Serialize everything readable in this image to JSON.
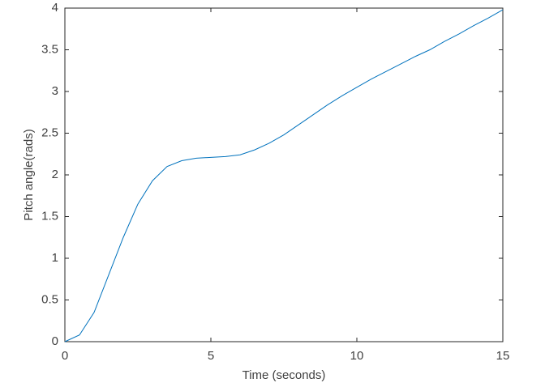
{
  "chart_data": {
    "type": "line",
    "x_label": "Time (seconds)",
    "y_label": "Pitch angle(rads)",
    "x": [
      0,
      0.5,
      1,
      1.5,
      2,
      2.5,
      3,
      3.5,
      4,
      4.5,
      5,
      5.5,
      6,
      6.5,
      7,
      7.5,
      8,
      8.5,
      9,
      9.5,
      10,
      10.5,
      11,
      11.5,
      12,
      12.5,
      13,
      13.5,
      14,
      14.5,
      15
    ],
    "series": [
      {
        "color": "#0072bd",
        "values": [
          0,
          0.08,
          0.35,
          0.8,
          1.25,
          1.65,
          1.93,
          2.1,
          2.17,
          2.2,
          2.21,
          2.22,
          2.24,
          2.3,
          2.38,
          2.48,
          2.6,
          2.72,
          2.84,
          2.95,
          3.05,
          3.15,
          3.24,
          3.33,
          3.42,
          3.5,
          3.6,
          3.69,
          3.79,
          3.88,
          3.98
        ]
      }
    ],
    "xlim": [
      0,
      15
    ],
    "xticks": [
      0,
      5,
      10,
      15
    ],
    "ylim": [
      0,
      4
    ],
    "yticks": [
      0,
      0.5,
      1,
      1.5,
      2,
      2.5,
      3,
      3.5,
      4
    ]
  }
}
